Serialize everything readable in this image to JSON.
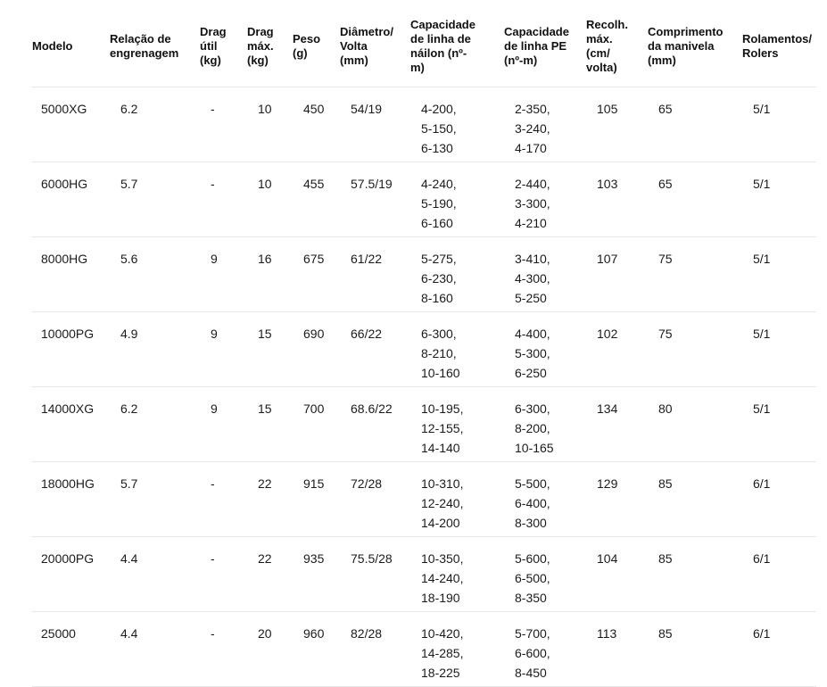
{
  "colors": {
    "background": "#ffffff",
    "text": "#1b1b1b",
    "header_text": "#111111",
    "divider": "#e7e7e7"
  },
  "table": {
    "column_keys": [
      "modelo",
      "relacao-engrenagem",
      "drag-util",
      "drag-max",
      "peso",
      "diametro-volta",
      "capacidade-nailon",
      "capacidade-pe",
      "recolhimento-max",
      "comprimento-manivela",
      "rolamentos"
    ],
    "columns": [
      "Modelo",
      "Relação de\nengrenagem",
      "Drag\nútil\n(kg)",
      "Drag\nmáx.\n(kg)",
      "Peso\n(g)",
      "Diâmetro/\nVolta\n(mm)",
      "Capacidade\nde linha de\nnáilon (nº-\nm)",
      "Capacidade\nde linha PE\n(nº-m)",
      "Recolh.\nmáx.\n(cm/\nvolta)",
      "Comprimento\nda manivela\n(mm)",
      "Rolamentos/\nRolers"
    ],
    "rows": [
      {
        "cells": [
          "5000XG",
          "6.2",
          "-",
          "10",
          "450",
          "54/19",
          "4-200,\n5-150,\n6-130",
          "2-350,\n3-240,\n4-170",
          "105",
          "65",
          "5/1"
        ]
      },
      {
        "cells": [
          "6000HG",
          "5.7",
          "-",
          "10",
          "455",
          "57.5/19",
          "4-240,\n5-190,\n6-160",
          "2-440,\n3-300,\n4-210",
          "103",
          "65",
          "5/1"
        ]
      },
      {
        "cells": [
          "8000HG",
          "5.6",
          "9",
          "16",
          "675",
          "61/22",
          "5-275,\n6-230,\n8-160",
          "3-410,\n4-300,\n5-250",
          "107",
          "75",
          "5/1"
        ]
      },
      {
        "cells": [
          "10000PG",
          "4.9",
          "9",
          "15",
          "690",
          "66/22",
          "6-300,\n8-210,\n10-160",
          "4-400,\n5-300,\n6-250",
          "102",
          "75",
          "5/1"
        ]
      },
      {
        "cells": [
          "14000XG",
          "6.2",
          "9",
          "15",
          "700",
          "68.6/22",
          "10-195,\n12-155,\n14-140",
          "6-300,\n8-200,\n10-165",
          "134",
          "80",
          "5/1"
        ]
      },
      {
        "cells": [
          "18000HG",
          "5.7",
          "-",
          "22",
          "915",
          "72/28",
          "10-310,\n12-240,\n14-200",
          "5-500,\n6-400,\n8-300",
          "129",
          "85",
          "6/1"
        ]
      },
      {
        "cells": [
          "20000PG",
          "4.4",
          "-",
          "22",
          "935",
          "75.5/28",
          "10-350,\n14-240,\n18-190",
          "5-600,\n6-500,\n8-350",
          "104",
          "85",
          "6/1"
        ]
      },
      {
        "cells": [
          "25000",
          "4.4",
          "-",
          "20",
          "960",
          "82/28",
          "10-420,\n14-285,\n18-225",
          "5-700,\n6-600,\n8-450",
          "113",
          "85",
          "6/1"
        ]
      }
    ]
  },
  "chart_data": {
    "type": "table",
    "title": "",
    "columns": [
      "Modelo",
      "Relação de engrenagem",
      "Drag útil (kg)",
      "Drag máx. (kg)",
      "Peso (g)",
      "Diâmetro/Volta (mm)",
      "Capacidade de linha de náilon (nº-m)",
      "Capacidade de linha PE (nº-m)",
      "Recolh. máx. (cm/volta)",
      "Comprimento da manivela (mm)",
      "Rolamentos/Rolers"
    ],
    "rows": [
      [
        "5000XG",
        "6.2",
        "-",
        "10",
        "450",
        "54/19",
        "4-200, 5-150, 6-130",
        "2-350, 3-240, 4-170",
        "105",
        "65",
        "5/1"
      ],
      [
        "6000HG",
        "5.7",
        "-",
        "10",
        "455",
        "57.5/19",
        "4-240, 5-190, 6-160",
        "2-440, 3-300, 4-210",
        "103",
        "65",
        "5/1"
      ],
      [
        "8000HG",
        "5.6",
        "9",
        "16",
        "675",
        "61/22",
        "5-275, 6-230, 8-160",
        "3-410, 4-300, 5-250",
        "107",
        "75",
        "5/1"
      ],
      [
        "10000PG",
        "4.9",
        "9",
        "15",
        "690",
        "66/22",
        "6-300, 8-210, 10-160",
        "4-400, 5-300, 6-250",
        "102",
        "75",
        "5/1"
      ],
      [
        "14000XG",
        "6.2",
        "9",
        "15",
        "700",
        "68.6/22",
        "10-195, 12-155, 14-140",
        "6-300, 8-200, 10-165",
        "134",
        "80",
        "5/1"
      ],
      [
        "18000HG",
        "5.7",
        "-",
        "22",
        "915",
        "72/28",
        "10-310, 12-240, 14-200",
        "5-500, 6-400, 8-300",
        "129",
        "85",
        "6/1"
      ],
      [
        "20000PG",
        "4.4",
        "-",
        "22",
        "935",
        "75.5/28",
        "10-350, 14-240, 18-190",
        "5-600, 6-500, 8-350",
        "104",
        "85",
        "6/1"
      ],
      [
        "25000",
        "4.4",
        "-",
        "20",
        "960",
        "82/28",
        "10-420, 14-285, 18-225",
        "5-700, 6-600, 8-450",
        "113",
        "85",
        "6/1"
      ]
    ]
  }
}
